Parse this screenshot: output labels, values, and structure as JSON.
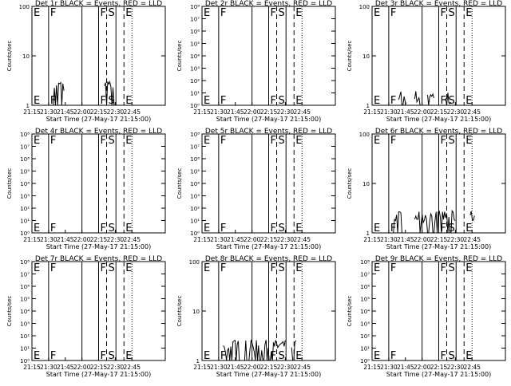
{
  "x_ticks": [
    "21:15",
    "21:30",
    "21:45",
    "22:00",
    "22:15",
    "22:30",
    "22:45"
  ],
  "xlabel": "Start Time (27-May-17 21:15:00)",
  "ylabel": "Counts/sec",
  "flags": [
    "E",
    "F",
    "F",
    "S",
    "E"
  ],
  "chart_data": [
    {
      "type": "line",
      "title": "Det 1r BLACK = Events, RED = LLD",
      "scale": "log",
      "ylim": [
        1,
        100
      ],
      "y_ticks": [
        "1",
        "10",
        "100"
      ],
      "flags": [
        "E",
        "F",
        "F",
        "S",
        "E"
      ],
      "series": [
        {
          "segments": [
            [
              20,
              30
            ],
            [
              68,
              78
            ]
          ],
          "level": 2.5,
          "noise": 0.6
        }
      ],
      "xlabel": "Start Time (27-May-17 21:15:00)"
    },
    {
      "type": "line",
      "title": "Det 2r BLACK = Events, RED = LLD",
      "scale": "log",
      "ylim": [
        1,
        100000000
      ],
      "y_ticks": [
        "10⁰",
        "10¹",
        "10²",
        "10³",
        "10⁴",
        "10⁵",
        "10⁶",
        "10⁷",
        "10⁸"
      ],
      "flags": [
        "E",
        "F",
        "F",
        "S",
        "E"
      ],
      "series": [],
      "xlabel": "Start Time (27-May-17 21:15:00)"
    },
    {
      "type": "line",
      "title": "Det 3r BLACK = Events, RED = LLD",
      "scale": "log",
      "ylim": [
        1,
        100
      ],
      "y_ticks": [
        "1",
        "10",
        "100"
      ],
      "flags": [
        "E",
        "F",
        "F",
        "S",
        "E"
      ],
      "series": [
        {
          "segments": [
            [
              25,
              32
            ],
            [
              40,
              45
            ],
            [
              52,
              58
            ],
            [
              68,
              74
            ]
          ],
          "level": 1.5,
          "noise": 0.5
        }
      ],
      "xlabel": "Start Time (27-May-17 21:15:00)"
    },
    {
      "type": "line",
      "title": "Det 4r BLACK = Events, RED = LLD",
      "scale": "log",
      "ylim": [
        1,
        100000000
      ],
      "y_ticks": [
        "10⁰",
        "10¹",
        "10²",
        "10³",
        "10⁴",
        "10⁵",
        "10⁶",
        "10⁷",
        "10⁸"
      ],
      "flags": [
        "E",
        "F",
        "F",
        "S",
        "E"
      ],
      "series": [],
      "xlabel": "Start Time (27-May-17 21:15:00)"
    },
    {
      "type": "line",
      "title": "Det 5r BLACK = Events, RED = LLD",
      "scale": "log",
      "ylim": [
        1,
        100000000
      ],
      "y_ticks": [
        "10⁰",
        "10¹",
        "10²",
        "10³",
        "10⁴",
        "10⁵",
        "10⁶",
        "10⁷",
        "10⁸"
      ],
      "flags": [
        "E",
        "F",
        "F",
        "S",
        "E"
      ],
      "series": [],
      "xlabel": "Start Time (27-May-17 21:15:00)"
    },
    {
      "type": "line",
      "title": "Det 6r BLACK = Events, RED = LLD",
      "scale": "log",
      "ylim": [
        1,
        100
      ],
      "y_ticks": [
        "1",
        "10",
        "100"
      ],
      "flags": [
        "E",
        "F",
        "F",
        "S",
        "E"
      ],
      "series": [
        {
          "segments": [
            [
              20,
              32
            ],
            [
              40,
              78
            ],
            [
              92,
              96
            ]
          ],
          "level": 2.2,
          "noise": 0.6
        }
      ],
      "xlabel": "Start Time (27-May-17 21:15:00)"
    },
    {
      "type": "line",
      "title": "Det 7r BLACK = Events, RED = LLD",
      "scale": "log",
      "ylim": [
        1,
        100000000
      ],
      "y_ticks": [
        "10⁰",
        "10¹",
        "10²",
        "10³",
        "10⁴",
        "10⁵",
        "10⁶",
        "10⁷",
        "10⁸"
      ],
      "flags": [
        "E",
        "F",
        "F",
        "S",
        "E"
      ],
      "series": [],
      "xlabel": "Start Time (27-May-17 21:15:00)"
    },
    {
      "type": "line",
      "title": "Det 8r BLACK = Events, RED = LLD",
      "scale": "log",
      "ylim": [
        1,
        100
      ],
      "y_ticks": [
        "1",
        "10",
        "100"
      ],
      "flags": [
        "E",
        "F",
        "F",
        "S",
        "E"
      ],
      "series": [
        {
          "segments": [
            [
              20,
              78
            ],
            [
              84,
              88
            ]
          ],
          "level": 2.0,
          "noise": 0.6
        }
      ],
      "xlabel": "Start Time (27-May-17 21:15:00)"
    },
    {
      "type": "line",
      "title": "Det 9r BLACK = Events, RED = LLD",
      "scale": "log",
      "ylim": [
        1,
        100000000
      ],
      "y_ticks": [
        "10⁰",
        "10¹",
        "10²",
        "10³",
        "10⁴",
        "10⁵",
        "10⁶",
        "10⁷",
        "10⁸"
      ],
      "flags": [
        "E",
        "F",
        "F",
        "S",
        "E"
      ],
      "series": [],
      "xlabel": "Start Time (27-May-17 21:15:00)"
    }
  ]
}
